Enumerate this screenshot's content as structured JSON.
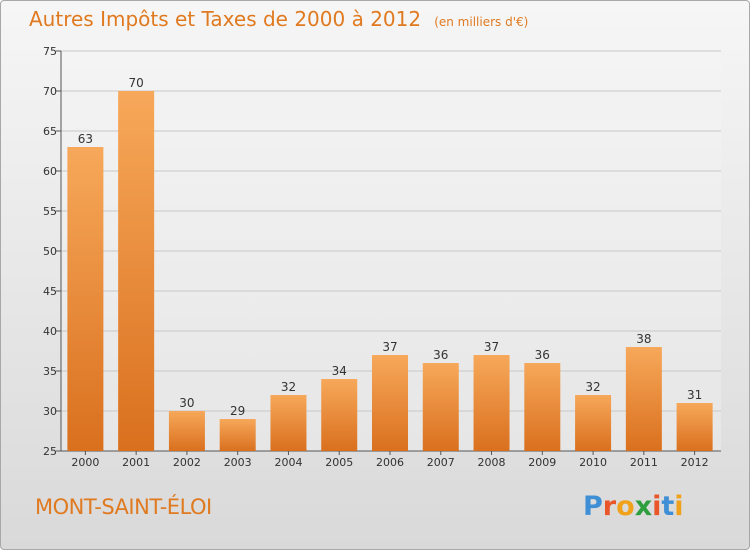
{
  "chart_data": {
    "type": "bar",
    "title": "Autres Impôts et Taxes de 2000 à 2012",
    "unit": "(en milliers d'€)",
    "categories": [
      "2000",
      "2001",
      "2002",
      "2003",
      "2004",
      "2005",
      "2006",
      "2007",
      "2008",
      "2009",
      "2010",
      "2011",
      "2012"
    ],
    "values": [
      63,
      70,
      30,
      29,
      32,
      34,
      37,
      36,
      37,
      36,
      32,
      38,
      31
    ],
    "ylim": [
      25,
      75
    ],
    "yticks": [
      25,
      30,
      35,
      40,
      45,
      50,
      55,
      60,
      65,
      70,
      75
    ],
    "grid": true,
    "bar_color_top": "#f7a85a",
    "bar_color_bottom": "#d9701e"
  },
  "place_name": "MONT-SAINT-ÉLOI",
  "logo": {
    "text": "Proxiti",
    "letter_colors": [
      "#3f8fd6",
      "#e8562a",
      "#f0a21c",
      "#2e9e3e",
      "#e8562a",
      "#3f8fd6",
      "#f0a21c"
    ]
  },
  "colors": {
    "accent": "#e07a20",
    "grid": "#c8c8c8",
    "axis": "#555555"
  }
}
